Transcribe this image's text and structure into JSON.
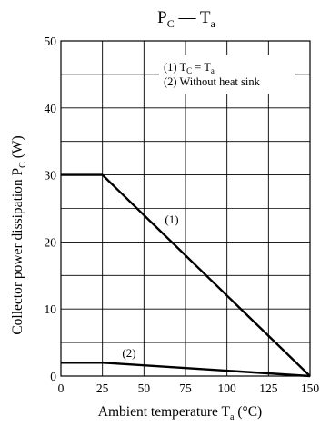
{
  "chart_data": {
    "type": "line",
    "title": {
      "main": "P",
      "main_sub": "C",
      "dash": " — ",
      "second": "T",
      "second_sub": "a"
    },
    "xlabel": {
      "text": "Ambient temperature  T",
      "sub": "a",
      "unit": "  (°C)"
    },
    "ylabel": {
      "text": "Collector power dissipation  P",
      "sub": "C",
      "unit": "  (W)"
    },
    "xlim": [
      0,
      150
    ],
    "ylim": [
      0,
      50
    ],
    "xticks": [
      0,
      25,
      50,
      75,
      100,
      125,
      150
    ],
    "yticks": [
      0,
      10,
      20,
      30,
      40,
      50
    ],
    "grid": true,
    "legend": {
      "line1_prefix": "(1) T",
      "line1_sub": "C",
      "line1_mid": " = T",
      "line1_sub2": "a",
      "line2": "(2) Without heat sink",
      "placement": "top-right"
    },
    "series": [
      {
        "label": "(1)",
        "x": [
          0,
          25,
          150
        ],
        "y": [
          30,
          30,
          0
        ]
      },
      {
        "label": "(2)",
        "x": [
          0,
          25,
          150
        ],
        "y": [
          2,
          2,
          0
        ]
      }
    ]
  }
}
